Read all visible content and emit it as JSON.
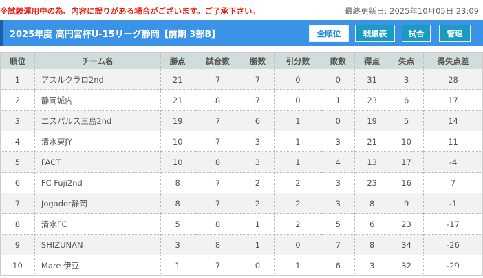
{
  "notice": "※試験運用中の為、内容に誤りがある場合がございます。ご了承下さい。",
  "last_updated": "最終更新日: 2025年10月05日 23:09",
  "header": {
    "title": "2025年度 高円宮杯U-15リーグ静岡【前期 3部B】",
    "buttons": [
      "全順位",
      "戦績表",
      "試合",
      "管理"
    ]
  },
  "colors": {
    "title_bar": "#3b93e8",
    "nav_button": "#1b9bc4",
    "notice": "#e8231a"
  },
  "table": {
    "columns": [
      "順位",
      "チーム名",
      "勝点",
      "試合数",
      "勝数",
      "引分数",
      "敗数",
      "得点",
      "失点",
      "得失点差"
    ],
    "rows": [
      [
        "1",
        "アスルクラロ2nd",
        "21",
        "7",
        "7",
        "0",
        "0",
        "31",
        "3",
        "28"
      ],
      [
        "2",
        "静岡城内",
        "21",
        "8",
        "7",
        "0",
        "1",
        "23",
        "6",
        "17"
      ],
      [
        "3",
        "エスパルス三島2nd",
        "19",
        "7",
        "6",
        "1",
        "0",
        "19",
        "5",
        "14"
      ],
      [
        "4",
        "清水東JY",
        "10",
        "7",
        "3",
        "1",
        "3",
        "21",
        "10",
        "11"
      ],
      [
        "5",
        "FACT",
        "10",
        "8",
        "3",
        "1",
        "4",
        "13",
        "17",
        "-4"
      ],
      [
        "6",
        "FC Fuji2nd",
        "8",
        "7",
        "2",
        "2",
        "3",
        "23",
        "16",
        "7"
      ],
      [
        "7",
        "Jogador静岡",
        "8",
        "7",
        "2",
        "2",
        "3",
        "8",
        "9",
        "-1"
      ],
      [
        "8",
        "清水FC",
        "5",
        "8",
        "1",
        "2",
        "5",
        "6",
        "23",
        "-17"
      ],
      [
        "9",
        "SHIZUNAN",
        "3",
        "8",
        "1",
        "0",
        "7",
        "8",
        "34",
        "-26"
      ],
      [
        "10",
        "Mare 伊豆",
        "1",
        "7",
        "0",
        "1",
        "6",
        "3",
        "32",
        "-29"
      ]
    ]
  }
}
